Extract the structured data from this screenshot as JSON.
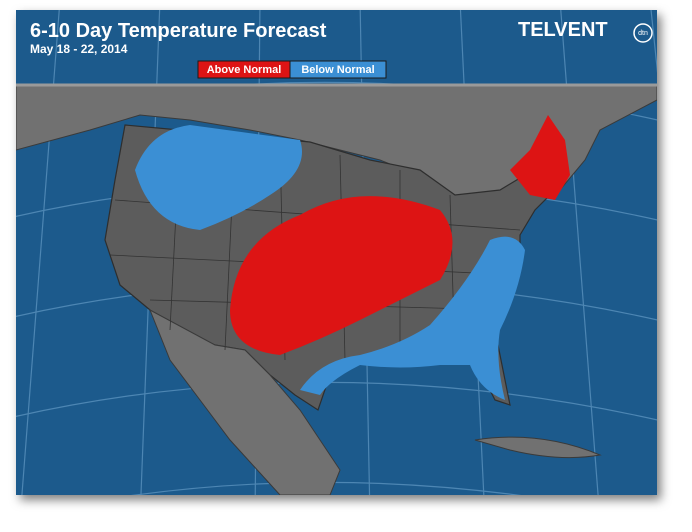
{
  "header": {
    "title": "6-10 Day Temperature Forecast",
    "date": "May 18 - 22, 2014"
  },
  "legend": [
    {
      "label": "Above Normal",
      "color": "#dd1414"
    },
    {
      "label": "Below Normal",
      "color": "#3b8fd4"
    }
  ],
  "logo": {
    "name": "TELVENT",
    "sub": "dtn"
  }
}
